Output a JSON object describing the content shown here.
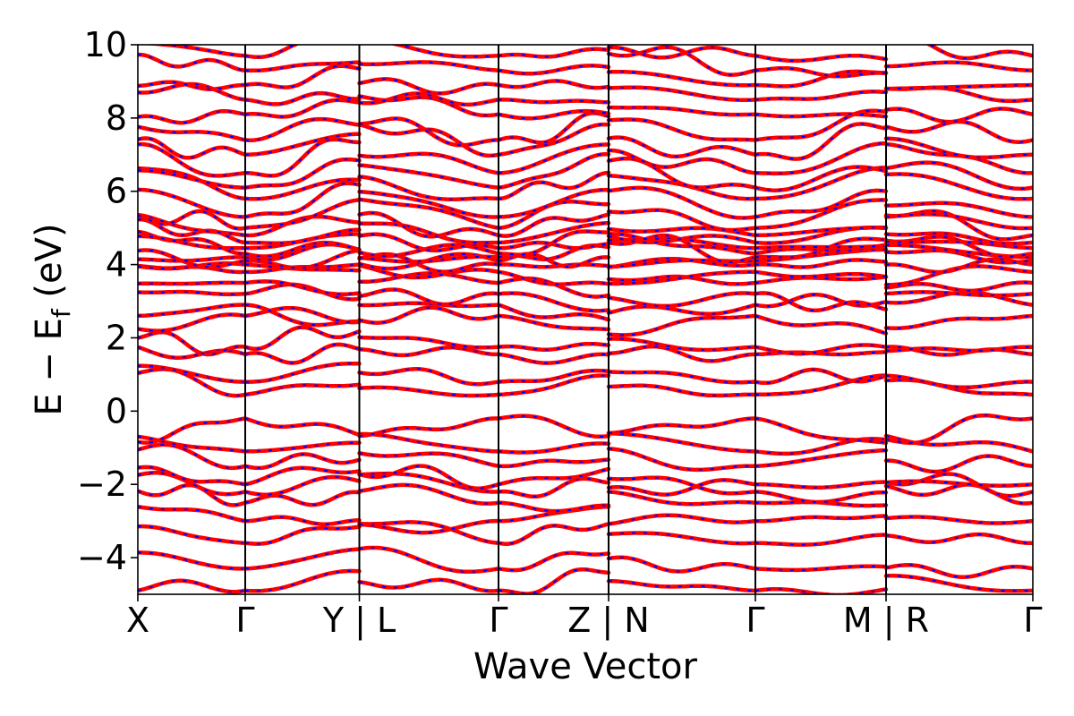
{
  "chart_data": {
    "type": "line",
    "title": "",
    "xlabel": "Wave Vector",
    "ylabel": {
      "prefix": "E − E",
      "subscript": "f",
      "suffix": " (eV)"
    },
    "ylim": [
      -5,
      10
    ],
    "yticks": [
      -4,
      -2,
      0,
      2,
      4,
      6,
      8,
      10
    ],
    "ytick_labels": [
      "−4",
      "−2",
      "0",
      "2",
      "4",
      "6",
      "8",
      "10"
    ],
    "path_ticks": [
      {
        "pos": 0.0,
        "label": "X"
      },
      {
        "pos": 0.12,
        "label": "Γ"
      },
      {
        "pos": 0.2475,
        "label": "Y | L"
      },
      {
        "pos": 0.403,
        "label": "Γ"
      },
      {
        "pos": 0.526,
        "label": "Z | N"
      },
      {
        "pos": 0.69,
        "label": "Γ"
      },
      {
        "pos": 0.836,
        "label": "M | R"
      },
      {
        "pos": 1.0,
        "label": "Γ"
      }
    ],
    "segments": [
      {
        "from": "X",
        "to": "Γ",
        "start": 0.0,
        "end": 0.12
      },
      {
        "from": "Γ",
        "to": "Y",
        "start": 0.12,
        "end": 0.2475
      },
      {
        "from": "L",
        "to": "Γ",
        "start": 0.2475,
        "end": 0.403
      },
      {
        "from": "Γ",
        "to": "Z",
        "start": 0.403,
        "end": 0.526
      },
      {
        "from": "N",
        "to": "Γ",
        "start": 0.526,
        "end": 0.69
      },
      {
        "from": "Γ",
        "to": "M",
        "start": 0.69,
        "end": 0.836
      },
      {
        "from": "R",
        "to": "Γ",
        "start": 0.836,
        "end": 1.0
      }
    ],
    "band_colors": {
      "primary": "#ff0000",
      "overlay": "#0000ff"
    },
    "grid": false,
    "legend": "none",
    "band_energies_gamma": [
      -4.9,
      -4.3,
      -3.6,
      -3.0,
      -2.5,
      -2.2,
      -2.0,
      -1.5,
      -1.1,
      -0.2,
      0.45,
      0.8,
      1.55,
      1.75,
      2.6,
      2.9,
      3.2,
      3.5,
      3.8,
      4.0,
      4.1,
      4.2,
      4.3,
      4.45,
      4.6,
      4.8,
      5.0,
      5.3,
      5.8,
      6.1,
      6.5,
      7.0,
      7.4,
      8.1,
      8.5,
      8.9,
      9.3,
      9.7
    ],
    "band_energies_zone": [
      -4.6,
      -4.0,
      -3.3,
      -2.8,
      -2.3,
      -2.0,
      -1.8,
      -1.3,
      -0.9,
      -0.8,
      0.9,
      1.2,
      1.5,
      1.9,
      2.3,
      2.7,
      3.0,
      3.4,
      3.7,
      3.9,
      4.2,
      4.4,
      4.6,
      4.8,
      5.0,
      5.2,
      5.6,
      5.9,
      6.4,
      6.8,
      7.2,
      7.6,
      7.9,
      8.3,
      8.7,
      9.1,
      9.5,
      9.9
    ]
  }
}
